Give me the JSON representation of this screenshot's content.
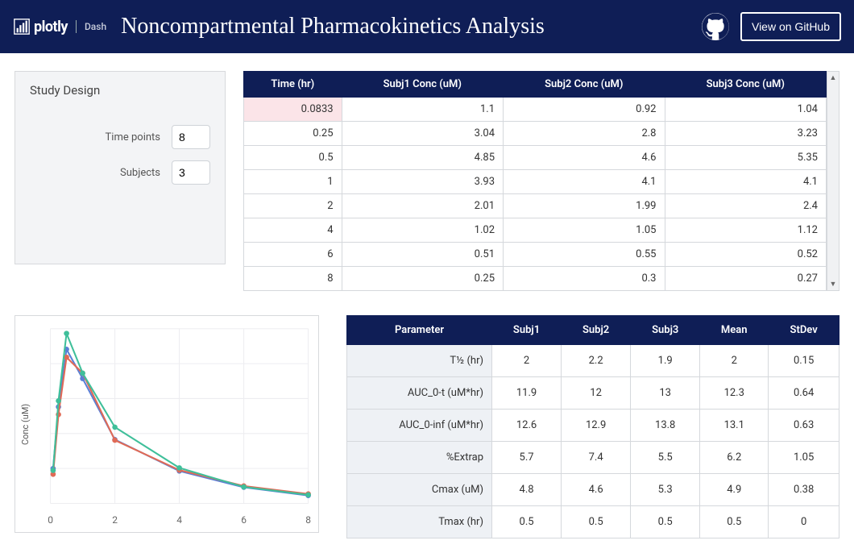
{
  "header": {
    "brand_plotly": "plotly",
    "brand_dash": "Dash",
    "title": "Noncompartmental Pharmacokinetics Analysis",
    "github_button": "View on GitHub"
  },
  "study": {
    "panel_title": "Study Design",
    "timepoints_label": "Time points",
    "timepoints_value": "8",
    "subjects_label": "Subjects",
    "subjects_value": "3"
  },
  "conc_table": {
    "columns": [
      "Time (hr)",
      "Subj1 Conc (uM)",
      "Subj2 Conc (uM)",
      "Subj3 Conc (uM)"
    ],
    "rows": [
      [
        "0.0833",
        "1.1",
        "0.92",
        "1.04"
      ],
      [
        "0.25",
        "3.04",
        "2.8",
        "3.23"
      ],
      [
        "0.5",
        "4.85",
        "4.6",
        "5.35"
      ],
      [
        "1",
        "3.93",
        "4.1",
        "4.1"
      ],
      [
        "2",
        "2.01",
        "1.99",
        "2.4"
      ],
      [
        "4",
        "1.02",
        "1.05",
        "1.12"
      ],
      [
        "6",
        "0.51",
        "0.55",
        "0.52"
      ],
      [
        "8",
        "0.25",
        "0.3",
        "0.27"
      ]
    ],
    "highlight_cell": {
      "row": 0,
      "col": 0
    }
  },
  "chart": {
    "type": "line",
    "ylabel": "Conc (uM)",
    "xlim": [
      0,
      8
    ],
    "ylim": [
      0,
      5.5
    ],
    "xticks": [
      0,
      2,
      4,
      6,
      8
    ],
    "grid_color": "#ededf0",
    "background_color": "#ffffff",
    "marker_radius": 3.2,
    "line_width": 2,
    "series": [
      {
        "name": "Subj1",
        "color": "#5a7fd6",
        "x": [
          0.0833,
          0.25,
          0.5,
          1,
          2,
          4,
          6,
          8
        ],
        "y": [
          1.1,
          3.04,
          4.85,
          3.93,
          2.01,
          1.02,
          0.51,
          0.25
        ]
      },
      {
        "name": "Subj2",
        "color": "#e06a56",
        "x": [
          0.0833,
          0.25,
          0.5,
          1,
          2,
          4,
          6,
          8
        ],
        "y": [
          0.92,
          2.8,
          4.6,
          4.1,
          1.99,
          1.05,
          0.55,
          0.3
        ]
      },
      {
        "name": "Subj3",
        "color": "#3fbf9a",
        "x": [
          0.0833,
          0.25,
          0.5,
          1,
          2,
          4,
          6,
          8
        ],
        "y": [
          1.04,
          3.23,
          5.35,
          4.1,
          2.4,
          1.12,
          0.52,
          0.27
        ]
      }
    ]
  },
  "param_table": {
    "columns": [
      "Parameter",
      "Subj1",
      "Subj2",
      "Subj3",
      "Mean",
      "StDev"
    ],
    "rows": [
      [
        "T½ (hr)",
        "2",
        "2.2",
        "1.9",
        "2",
        "0.15"
      ],
      [
        "AUC_0-t (uM*hr)",
        "11.9",
        "12",
        "13",
        "12.3",
        "0.64"
      ],
      [
        "AUC_0-inf (uM*hr)",
        "12.6",
        "12.9",
        "13.8",
        "13.1",
        "0.63"
      ],
      [
        "%Extrap",
        "5.7",
        "7.4",
        "5.5",
        "6.2",
        "1.05"
      ],
      [
        "Cmax (uM)",
        "4.8",
        "4.6",
        "5.3",
        "4.9",
        "0.38"
      ],
      [
        "Tmax (hr)",
        "0.5",
        "0.5",
        "0.5",
        "0.5",
        "0"
      ]
    ]
  }
}
